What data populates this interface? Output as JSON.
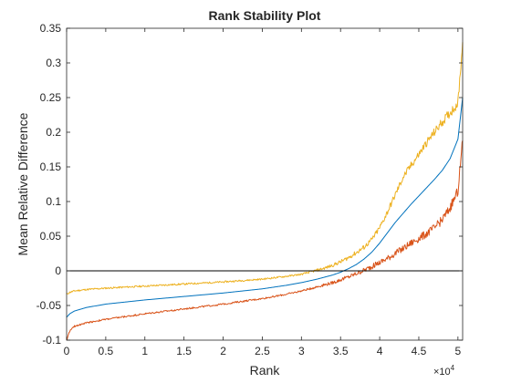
{
  "chart_data": {
    "type": "line",
    "title": "Rank Stability Plot",
    "xlabel": "Rank",
    "ylabel": "Mean Relative Difference",
    "x_exponent_label": "×10",
    "x_exponent_power": "4",
    "xlim": [
      0,
      50600
    ],
    "ylim": [
      -0.1,
      0.35
    ],
    "x_ticks": [
      0,
      5000,
      10000,
      15000,
      20000,
      25000,
      30000,
      35000,
      40000,
      45000,
      50000
    ],
    "x_tick_labels": [
      "0",
      "0.5",
      "1",
      "1.5",
      "2",
      "2.5",
      "3",
      "3.5",
      "4",
      "4.5",
      "5"
    ],
    "y_ticks": [
      -0.1,
      -0.05,
      0,
      0.05,
      0.1,
      0.15,
      0.2,
      0.25,
      0.3,
      0.35
    ],
    "y_tick_labels": [
      "-0.1",
      "-0.05",
      "0",
      "0.05",
      "0.1",
      "0.15",
      "0.2",
      "0.25",
      "0.3",
      "0.35"
    ],
    "grid": false,
    "reference_line": {
      "y": 0,
      "color": "#000000"
    },
    "series": [
      {
        "color": "#edb120",
        "noisy": true,
        "x": [
          0,
          400,
          1000,
          2500,
          5000,
          10000,
          15000,
          20000,
          25000,
          28000,
          30000,
          31000,
          32000,
          33000,
          34000,
          35000,
          36000,
          37000,
          38000,
          39000,
          40000,
          41000,
          42000,
          43000,
          44000,
          45000,
          46000,
          47000,
          48000,
          49000,
          50000,
          50600
        ],
        "y": [
          -0.034,
          -0.031,
          -0.029,
          -0.027,
          -0.025,
          -0.022,
          -0.019,
          -0.016,
          -0.012,
          -0.008,
          -0.005,
          -0.002,
          0.001,
          0.004,
          0.008,
          0.013,
          0.019,
          0.026,
          0.034,
          0.045,
          0.062,
          0.085,
          0.11,
          0.135,
          0.152,
          0.168,
          0.185,
          0.2,
          0.215,
          0.228,
          0.242,
          0.33
        ]
      },
      {
        "color": "#0072bd",
        "noisy": false,
        "x": [
          0,
          400,
          1000,
          2500,
          5000,
          10000,
          15000,
          20000,
          25000,
          28000,
          30000,
          32000,
          33000,
          34000,
          35000,
          36000,
          37000,
          38000,
          39000,
          40000,
          41000,
          42000,
          43000,
          44000,
          45000,
          46000,
          47000,
          48000,
          49000,
          50000,
          50600
        ],
        "y": [
          -0.067,
          -0.062,
          -0.058,
          -0.053,
          -0.048,
          -0.042,
          -0.037,
          -0.032,
          -0.026,
          -0.021,
          -0.017,
          -0.012,
          -0.009,
          -0.006,
          -0.002,
          0.003,
          0.009,
          0.017,
          0.027,
          0.04,
          0.055,
          0.07,
          0.083,
          0.096,
          0.108,
          0.12,
          0.132,
          0.145,
          0.162,
          0.19,
          0.25
        ]
      },
      {
        "color": "#d95319",
        "noisy": true,
        "x": [
          0,
          400,
          1000,
          2500,
          5000,
          10000,
          15000,
          20000,
          25000,
          28000,
          30000,
          32000,
          34000,
          35000,
          36000,
          37000,
          38000,
          39000,
          40000,
          41000,
          42000,
          43000,
          44000,
          45000,
          46000,
          47000,
          48000,
          49000,
          50000,
          50600
        ],
        "y": [
          -0.1,
          -0.087,
          -0.08,
          -0.075,
          -0.07,
          -0.062,
          -0.055,
          -0.048,
          -0.04,
          -0.034,
          -0.029,
          -0.023,
          -0.017,
          -0.013,
          -0.009,
          -0.004,
          0.001,
          0.006,
          0.012,
          0.018,
          0.025,
          0.032,
          0.04,
          0.047,
          0.054,
          0.062,
          0.074,
          0.091,
          0.115,
          0.188
        ]
      }
    ]
  }
}
